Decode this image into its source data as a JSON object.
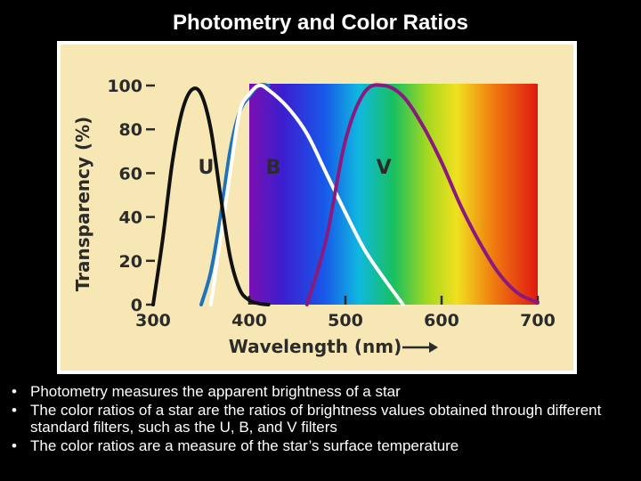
{
  "slide": {
    "title": "Photometry and Color Ratios"
  },
  "bullets": [
    "Photometry measures the apparent brightness of a star",
    "The color ratios of a star are the ratios of brightness values obtained through different standard filters, such as the U, B, and V filters",
    "The color ratios are a measure of the star’s surface temperature"
  ],
  "chart_data": {
    "type": "line",
    "title": "",
    "xlabel": "Wavelength (nm)",
    "ylabel": "Transparency (%)",
    "xlim": [
      300,
      700
    ],
    "ylim": [
      0,
      100
    ],
    "x_ticks": [
      300,
      400,
      500,
      600,
      700
    ],
    "y_ticks": [
      0,
      20,
      40,
      60,
      80,
      100
    ],
    "grid": false,
    "background_color": "#f7e7b4",
    "spectrum_band": [
      400,
      700
    ],
    "series": [
      {
        "name": "U",
        "color": "#111111",
        "x": [
          300,
          310,
          320,
          330,
          340,
          350,
          360,
          370,
          380,
          390,
          400,
          410,
          420
        ],
        "y": [
          0,
          30,
          65,
          88,
          98,
          96,
          80,
          50,
          22,
          7,
          2,
          0.5,
          0
        ]
      },
      {
        "name": "B",
        "color": "#ffffff",
        "x": [
          360,
          380,
          390,
          400,
          410,
          420,
          440,
          460,
          480,
          500,
          520,
          540,
          560
        ],
        "y": [
          0,
          60,
          88,
          96,
          100,
          98,
          90,
          78,
          60,
          42,
          25,
          12,
          0
        ]
      },
      {
        "name": "V",
        "color": "#8b1a7e",
        "x": [
          460,
          480,
          500,
          520,
          540,
          560,
          580,
          600,
          620,
          640,
          660,
          680,
          700
        ],
        "y": [
          0,
          30,
          75,
          97,
          100,
          95,
          82,
          65,
          45,
          28,
          14,
          5,
          1
        ]
      },
      {
        "name": "",
        "color": "#1e73be",
        "x": [
          350,
          360,
          370,
          380,
          390,
          400,
          410,
          420
        ],
        "y": [
          0,
          15,
          40,
          70,
          88,
          95,
          100,
          100
        ]
      }
    ],
    "labels": [
      {
        "text": "U",
        "x": 355,
        "y": 63
      },
      {
        "text": "B",
        "x": 425,
        "y": 63
      },
      {
        "text": "V",
        "x": 540,
        "y": 63
      }
    ]
  }
}
